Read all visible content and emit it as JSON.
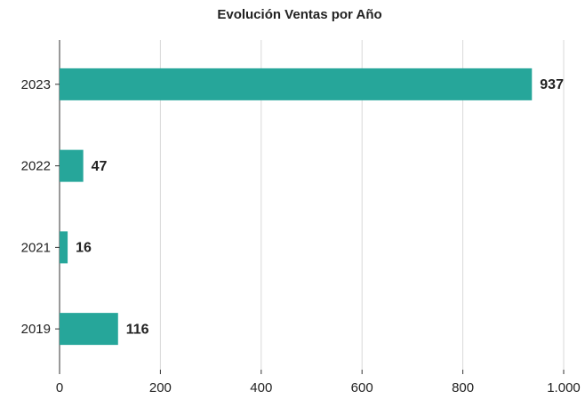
{
  "chart_data": {
    "type": "bar",
    "orientation": "horizontal",
    "title": "Evolución Ventas por Año",
    "categories": [
      "2023",
      "2022",
      "2021",
      "2019"
    ],
    "values": [
      937,
      47,
      16,
      116
    ],
    "color": "#26a69a",
    "xlim": [
      0,
      1000
    ],
    "xticks": [
      0,
      200,
      400,
      600,
      800,
      {
        "value": 1000,
        "label": "1.000"
      }
    ],
    "grid": true
  }
}
